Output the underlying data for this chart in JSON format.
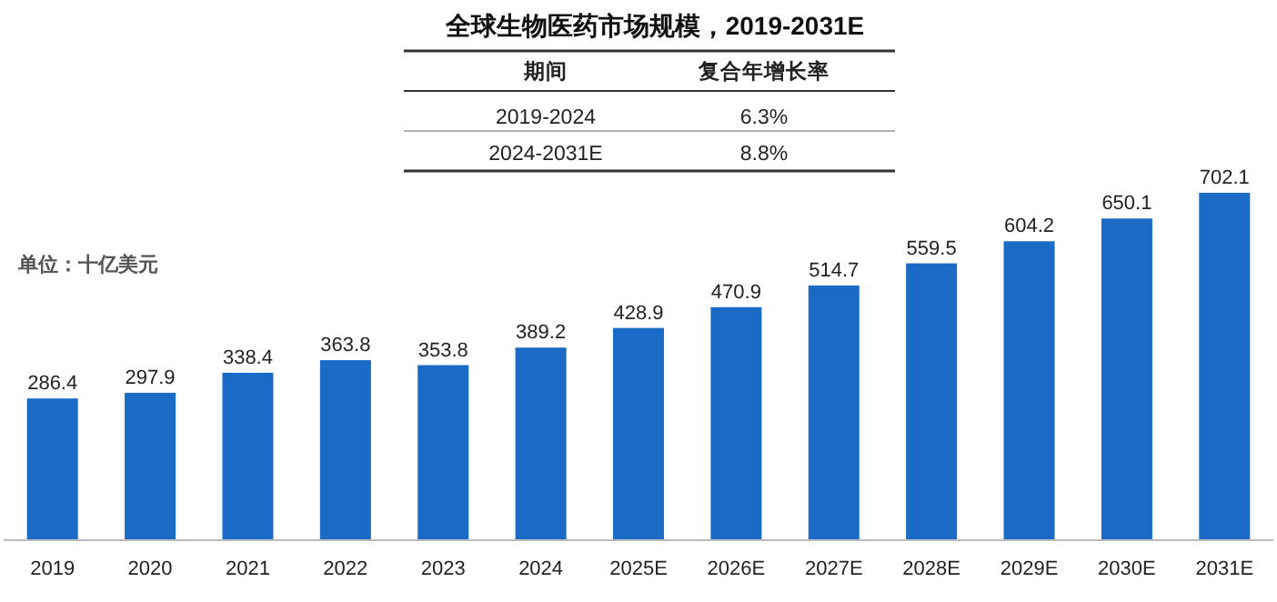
{
  "chart_data": {
    "type": "bar",
    "title": "全球生物医药市场规模，2019-2031E",
    "categories": [
      "2019",
      "2020",
      "2021",
      "2022",
      "2023",
      "2024",
      "2025E",
      "2026E",
      "2027E",
      "2028E",
      "2029E",
      "2030E",
      "2031E"
    ],
    "values": [
      286.4,
      297.9,
      338.4,
      363.8,
      353.8,
      389.2,
      428.9,
      470.9,
      514.7,
      559.5,
      604.2,
      650.1,
      702.1
    ],
    "color": "#1b6ac6",
    "data_labels": true,
    "annotations": [
      "单位：十亿美元",
      "期间",
      "复合年增长率",
      "2019-2024",
      "6.3%",
      "2024-2031E",
      "8.8%"
    ]
  }
}
